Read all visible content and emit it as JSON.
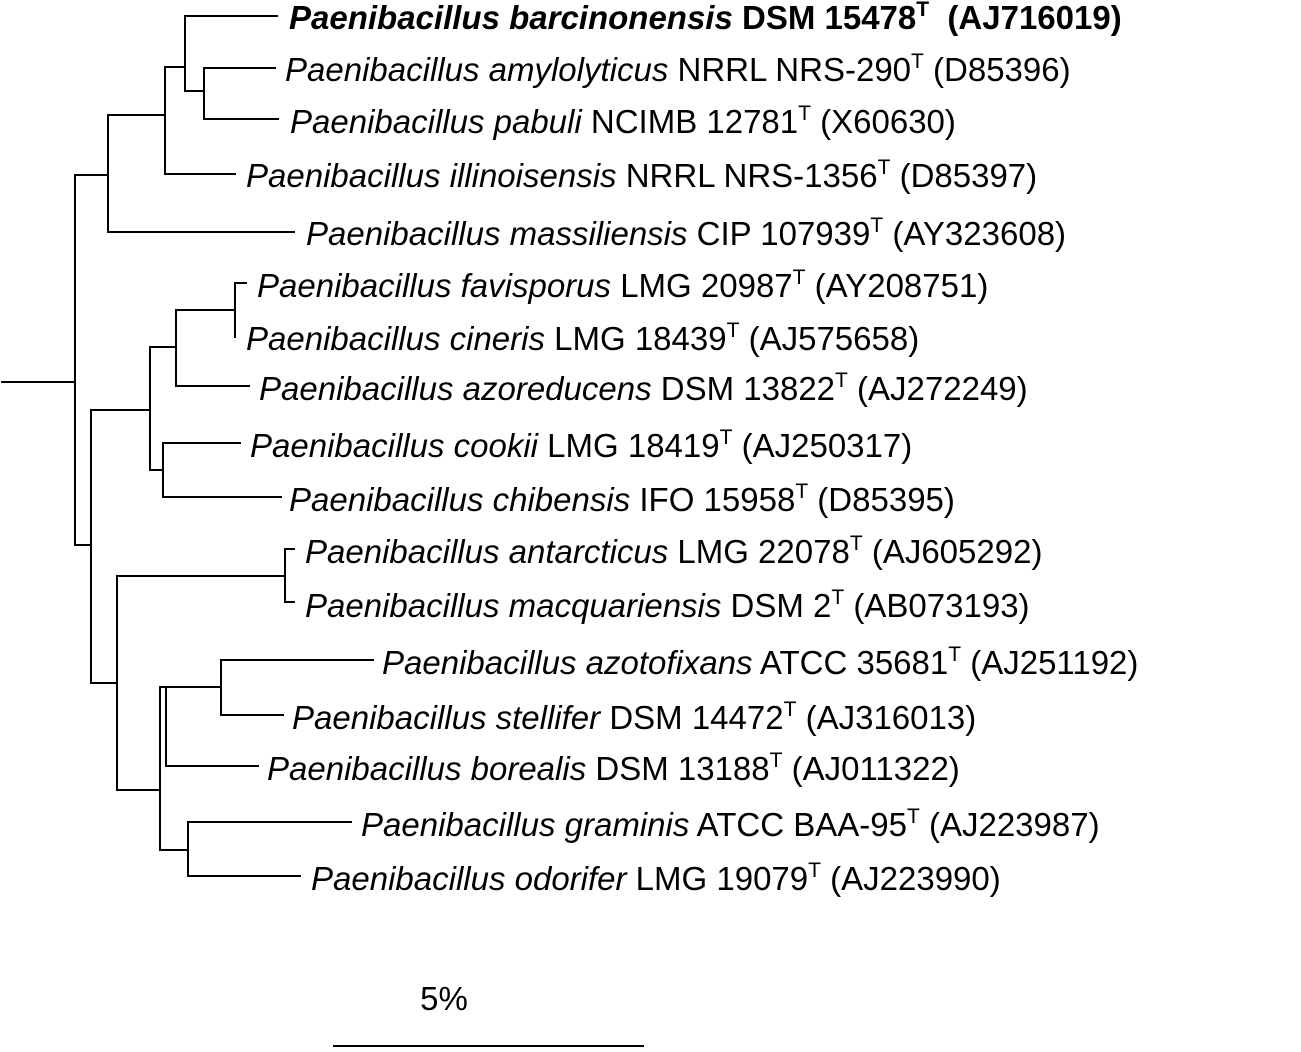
{
  "taxa": [
    {
      "species": "Paenibacillus barcinonensis",
      "strain": "DSM 15478",
      "type_mark": "T",
      "accession": "(AJ716019)",
      "bold": true
    },
    {
      "species": "Paenibacillus amylolyticus",
      "strain": "NRRL NRS-290",
      "type_mark": "T",
      "accession": "(D85396)",
      "bold": false
    },
    {
      "species": "Paenibacillus pabuli",
      "strain": "NCIMB 12781",
      "type_mark": "T",
      "accession": "(X60630)",
      "bold": false
    },
    {
      "species": "Paenibacillus illinoisensis",
      "strain": "NRRL NRS-1356",
      "type_mark": "T",
      "accession": "(D85397)",
      "bold": false
    },
    {
      "species": "Paenibacillus massiliensis",
      "strain": "CIP 107939",
      "type_mark": "T",
      "accession": "(AY323608)",
      "bold": false
    },
    {
      "species": "Paenibacillus favisporus",
      "strain": "LMG 20987",
      "type_mark": "T",
      "accession": "(AY208751)",
      "bold": false
    },
    {
      "species": "Paenibacillus cineris",
      "strain": "LMG 18439",
      "type_mark": "T",
      "accession": "(AJ575658)",
      "bold": false
    },
    {
      "species": "Paenibacillus azoreducens",
      "strain": "DSM 13822",
      "type_mark": "T",
      "accession": "(AJ272249)",
      "bold": false
    },
    {
      "species": "Paenibacillus cookii",
      "strain": "LMG 18419",
      "type_mark": "T",
      "accession": "(AJ250317)",
      "bold": false
    },
    {
      "species": "Paenibacillus chibensis",
      "strain": "IFO 15958",
      "type_mark": "T",
      "accession": "(D85395)",
      "bold": false
    },
    {
      "species": "Paenibacillus antarcticus",
      "strain": "LMG 22078",
      "type_mark": "T",
      "accession": "(AJ605292)",
      "bold": false
    },
    {
      "species": "Paenibacillus macquariensis",
      "strain": "DSM 2",
      "type_mark": "T",
      "accession": "(AB073193)",
      "bold": false
    },
    {
      "species": "Paenibacillus azotofixans",
      "strain": "ATCC 35681",
      "type_mark": "T",
      "accession": "(AJ251192)",
      "bold": false
    },
    {
      "species": "Paenibacillus stellifer",
      "strain": "DSM 14472",
      "type_mark": "T",
      "accession": "(AJ316013)",
      "bold": false
    },
    {
      "species": "Paenibacillus borealis",
      "strain": "DSM 13188",
      "type_mark": "T",
      "accession": "(AJ011322)",
      "bold": false
    },
    {
      "species": "Paenibacillus graminis",
      "strain": "ATCC BAA-95",
      "type_mark": "T",
      "accession": "(AJ223987)",
      "bold": false
    },
    {
      "species": "Paenibacillus odorifer",
      "strain": "LMG 19079",
      "type_mark": "T",
      "accession": "(AJ223990)",
      "bold": false
    }
  ],
  "scale_bar": {
    "label": "5%"
  }
}
